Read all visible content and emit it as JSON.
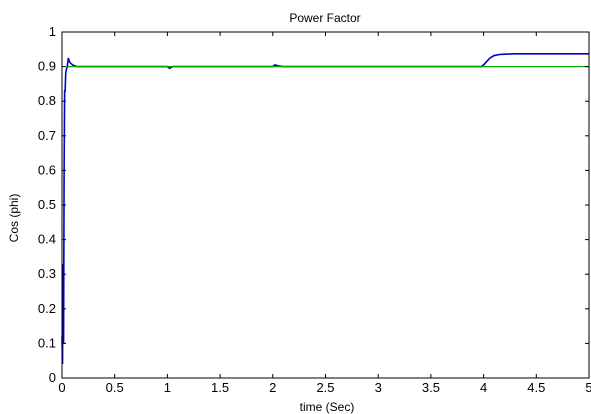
{
  "chart_data": {
    "type": "line",
    "title": "Power Factor",
    "xlabel": "time (Sec)",
    "ylabel": "Cos (phi)",
    "xlim": [
      0,
      5
    ],
    "ylim": [
      0,
      1
    ],
    "xticks": [
      "0",
      "0.5",
      "1",
      "1.5",
      "2",
      "2.5",
      "3",
      "3.5",
      "4",
      "4.5",
      "5"
    ],
    "yticks": [
      "0",
      "0.1",
      "0.2",
      "0.3",
      "0.4",
      "0.5",
      "0.6",
      "0.7",
      "0.8",
      "0.9",
      "1"
    ],
    "grid": false,
    "legend": "none",
    "series": [
      {
        "color": "#0000cc",
        "x": [
          0,
          0.005,
          0.01,
          0.015,
          0.02,
          0.025,
          0.03,
          0.035,
          0.04,
          0.05,
          0.06,
          0.07,
          0.08,
          0.1,
          0.12,
          0.15,
          0.2,
          0.25,
          0.3,
          0.5,
          1.0,
          1.02,
          1.05,
          1.1,
          1.3,
          1.5,
          2.0,
          2.02,
          2.05,
          2.1,
          2.3,
          2.5,
          3.0,
          3.5,
          3.9,
          3.98,
          4.0,
          4.03,
          4.06,
          4.1,
          4.15,
          4.2,
          4.3,
          4.5,
          4.8,
          5.0
        ],
        "y": [
          0.12,
          0.04,
          0.33,
          0.1,
          0.6,
          0.83,
          0.83,
          0.88,
          0.89,
          0.9,
          0.925,
          0.915,
          0.91,
          0.905,
          0.902,
          0.9,
          0.9,
          0.9,
          0.9,
          0.9,
          0.9,
          0.895,
          0.9,
          0.9,
          0.9,
          0.9,
          0.9,
          0.905,
          0.902,
          0.9,
          0.9,
          0.9,
          0.9,
          0.9,
          0.9,
          0.9,
          0.905,
          0.915,
          0.925,
          0.932,
          0.935,
          0.936,
          0.937,
          0.937,
          0.937,
          0.937
        ]
      },
      {
        "color": "#00aa00",
        "x": [
          0.05,
          5.0
        ],
        "y": [
          0.9,
          0.9
        ]
      }
    ]
  }
}
